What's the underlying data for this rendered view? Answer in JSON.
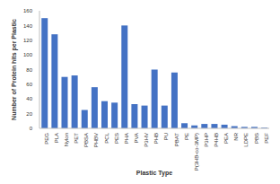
{
  "chart_data": {
    "type": "bar",
    "x_label": "Plastic Type",
    "y_label": "Number of Protein hits per Plastic",
    "categories": [
      "PEG",
      "PLA",
      "Nylon",
      "PET",
      "PBSA",
      "PHBV",
      "PCL",
      "PES",
      "PHA",
      "PVA",
      "P3HV",
      "PHB",
      "PU",
      "PBAT",
      "PE",
      "P(3HB-co-3MP)",
      "P3HP",
      "P4HB",
      "PEA",
      "NR",
      "LDPE",
      "PBS",
      "PEF"
    ],
    "values": [
      150,
      128,
      70,
      72,
      25,
      56,
      37,
      35,
      140,
      33,
      31,
      80,
      31,
      76,
      7,
      4,
      6,
      6,
      5,
      3,
      2,
      2,
      1
    ],
    "color": "#4472c4",
    "ylim": [
      0,
      160
    ],
    "yticks": [
      0,
      20,
      40,
      60,
      80,
      100,
      120,
      140,
      160
    ],
    "grid": false
  }
}
